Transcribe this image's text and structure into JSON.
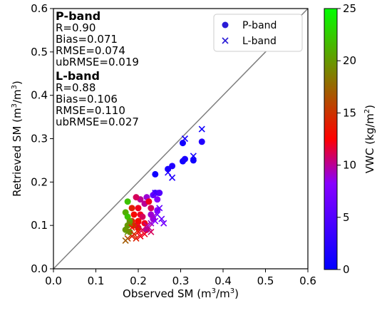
{
  "chart_data": {
    "type": "scatter",
    "xlabel": "Observed SM (m³/m³)",
    "ylabel": "Retrieved SM (m³/m³)",
    "xlim": [
      0,
      0.6
    ],
    "ylim": [
      0,
      0.6
    ],
    "xticks": [
      0.0,
      0.1,
      0.2,
      0.3,
      0.4,
      0.5,
      0.6
    ],
    "yticks": [
      0.0,
      0.1,
      0.2,
      0.3,
      0.4,
      0.5,
      0.6
    ],
    "tick_labels": [
      "0.0",
      "0.1",
      "0.2",
      "0.3",
      "0.4",
      "0.5",
      "0.6"
    ],
    "one_to_one_line": true,
    "legend_position": "top-right",
    "legend": [
      {
        "label": "P-band",
        "marker": "circle",
        "color": "#2a1bd6"
      },
      {
        "label": "L-band",
        "marker": "x",
        "color": "#2a1bd6"
      }
    ],
    "stats": [
      {
        "title": "P-band",
        "lines": [
          "R=0.90",
          "Bias=0.071",
          "RMSE=0.074",
          "ubRMSE=0.019"
        ]
      },
      {
        "title": "L-band",
        "lines": [
          "R=0.88",
          "Bias=0.106",
          "RMSE=0.110",
          "ubRMSE=0.027"
        ]
      }
    ],
    "colorbar": {
      "label": "VWC (kg/m²)",
      "min": 0,
      "max": 25,
      "ticks": [
        "0",
        "5",
        "10",
        "15",
        "20",
        "25"
      ],
      "colors": [
        "#0000ff",
        "#8800ff",
        "#ff0000",
        "#00ff00"
      ]
    },
    "series": [
      {
        "name": "P-band",
        "marker": "circle",
        "points": [
          [
            0.24,
            0.218,
            1
          ],
          [
            0.27,
            0.23,
            1.5
          ],
          [
            0.28,
            0.237,
            2
          ],
          [
            0.305,
            0.248,
            1
          ],
          [
            0.31,
            0.253,
            1.5
          ],
          [
            0.33,
            0.25,
            1
          ],
          [
            0.305,
            0.29,
            1
          ],
          [
            0.35,
            0.293,
            2
          ],
          [
            0.24,
            0.175,
            4
          ],
          [
            0.235,
            0.17,
            6
          ],
          [
            0.25,
            0.175,
            5
          ],
          [
            0.245,
            0.16,
            8
          ],
          [
            0.22,
            0.165,
            9
          ],
          [
            0.205,
            0.16,
            10
          ],
          [
            0.195,
            0.165,
            11
          ],
          [
            0.215,
            0.15,
            10
          ],
          [
            0.225,
            0.155,
            12
          ],
          [
            0.23,
            0.14,
            11
          ],
          [
            0.2,
            0.14,
            12
          ],
          [
            0.185,
            0.14,
            14
          ],
          [
            0.19,
            0.125,
            13
          ],
          [
            0.205,
            0.125,
            12
          ],
          [
            0.21,
            0.12,
            11
          ],
          [
            0.185,
            0.11,
            14
          ],
          [
            0.2,
            0.11,
            13
          ],
          [
            0.215,
            0.105,
            12
          ],
          [
            0.22,
            0.09,
            10
          ],
          [
            0.2,
            0.095,
            14
          ],
          [
            0.19,
            0.1,
            15
          ],
          [
            0.23,
            0.125,
            9
          ],
          [
            0.175,
            0.155,
            22
          ],
          [
            0.17,
            0.13,
            21
          ],
          [
            0.175,
            0.12,
            22
          ],
          [
            0.18,
            0.11,
            21
          ],
          [
            0.175,
            0.1,
            20
          ],
          [
            0.17,
            0.09,
            20
          ],
          [
            0.18,
            0.085,
            19
          ],
          [
            0.245,
            0.135,
            8
          ],
          [
            0.235,
            0.115,
            9
          ]
        ]
      },
      {
        "name": "L-band",
        "marker": "x",
        "points": [
          [
            0.35,
            0.322,
            1
          ],
          [
            0.31,
            0.3,
            1.5
          ],
          [
            0.33,
            0.26,
            1
          ],
          [
            0.28,
            0.21,
            2
          ],
          [
            0.27,
            0.222,
            2
          ],
          [
            0.24,
            0.175,
            4
          ],
          [
            0.25,
            0.14,
            6
          ],
          [
            0.245,
            0.125,
            7
          ],
          [
            0.255,
            0.115,
            6
          ],
          [
            0.26,
            0.105,
            7
          ],
          [
            0.24,
            0.11,
            8
          ],
          [
            0.23,
            0.105,
            9
          ],
          [
            0.225,
            0.095,
            10
          ],
          [
            0.23,
            0.085,
            11
          ],
          [
            0.215,
            0.08,
            12
          ],
          [
            0.2,
            0.085,
            13
          ],
          [
            0.205,
            0.075,
            12
          ],
          [
            0.195,
            0.07,
            14
          ],
          [
            0.19,
            0.08,
            15
          ],
          [
            0.185,
            0.075,
            14
          ],
          [
            0.175,
            0.07,
            16
          ],
          [
            0.17,
            0.065,
            17
          ],
          [
            0.185,
            0.095,
            13
          ],
          [
            0.2,
            0.1,
            12
          ],
          [
            0.21,
            0.09,
            11
          ],
          [
            0.22,
            0.1,
            10
          ],
          [
            0.235,
            0.12,
            9
          ],
          [
            0.18,
            0.105,
            19
          ],
          [
            0.175,
            0.085,
            20
          ]
        ]
      }
    ]
  }
}
